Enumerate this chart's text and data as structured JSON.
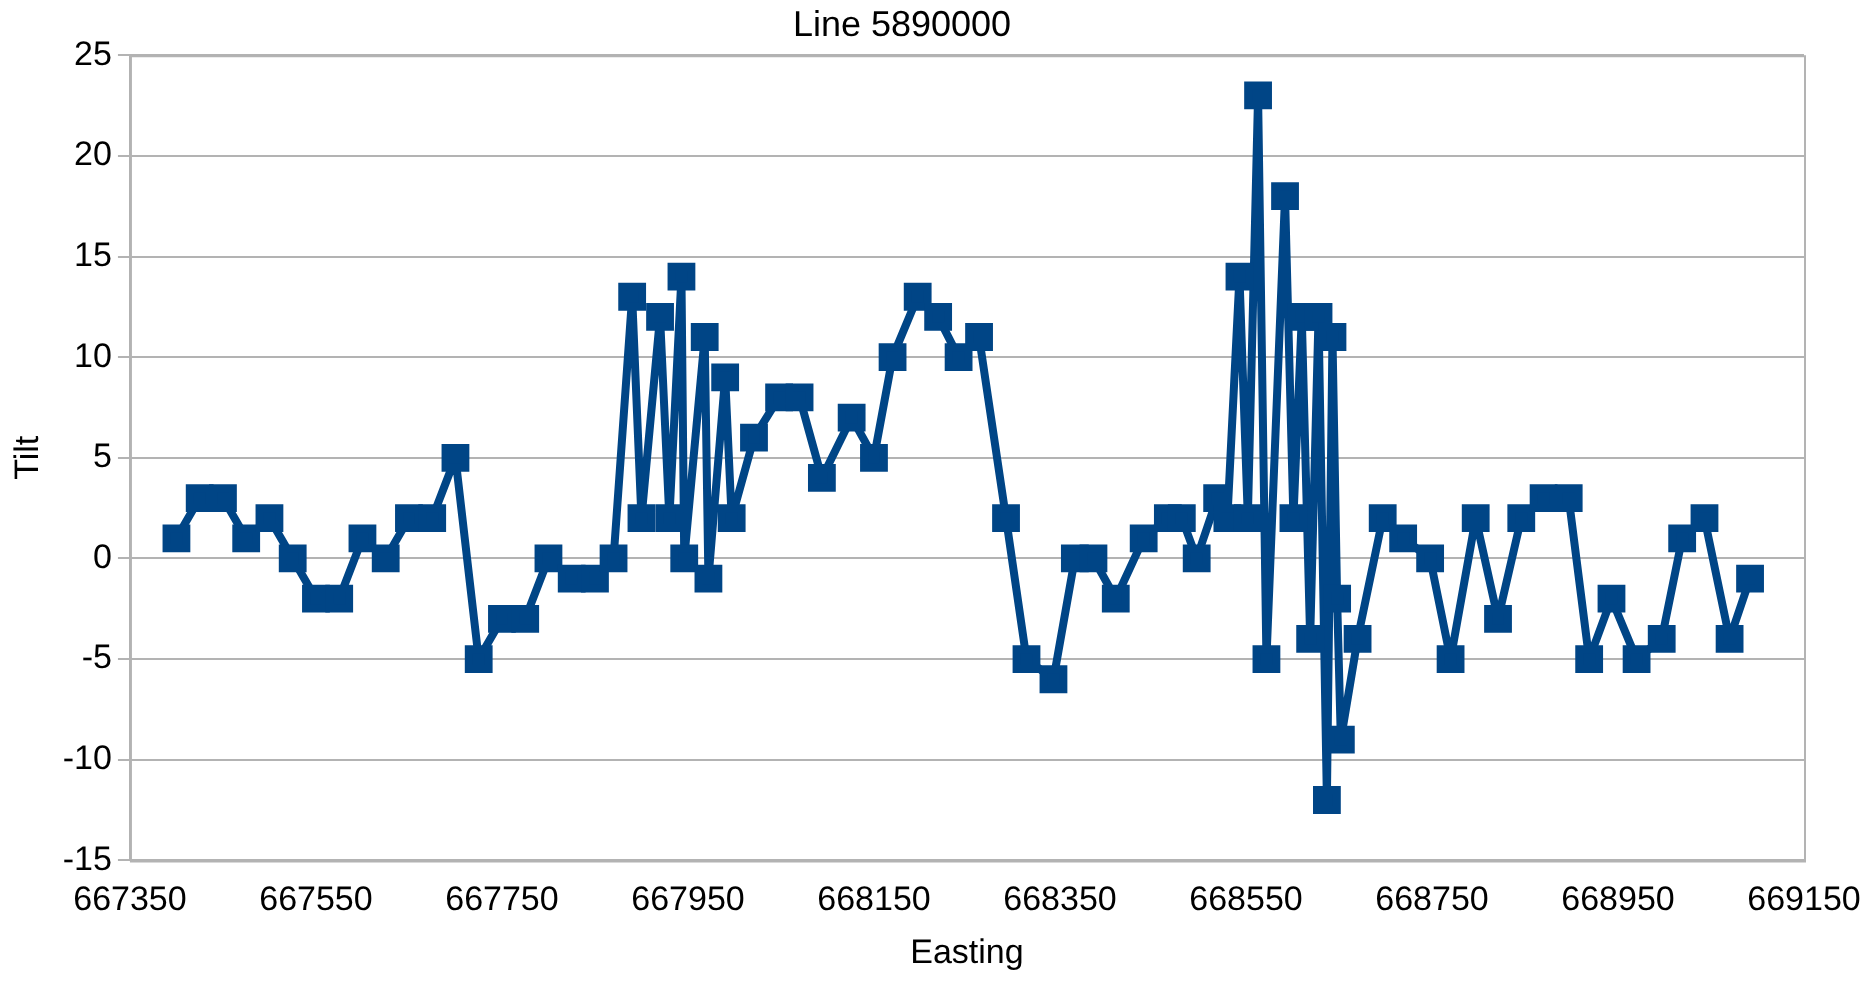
{
  "chart_data": {
    "type": "line",
    "title": "Line 5890000",
    "xlabel": "Easting",
    "ylabel": "Tilt",
    "xlim": [
      667350,
      669150
    ],
    "xticks": [
      667350,
      667550,
      667750,
      667950,
      668150,
      668350,
      668550,
      668750,
      668950,
      669150
    ],
    "ylim": [
      -15,
      25
    ],
    "yticks": [
      -15,
      -10,
      -5,
      0,
      5,
      10,
      15,
      20,
      25
    ],
    "grid": "y",
    "legend": false,
    "marker": "square",
    "line_style": "solid",
    "series": [
      {
        "color": "#004586",
        "x": [
          667400,
          667425,
          667450,
          667475,
          667500,
          667525,
          667550,
          667575,
          667600,
          667625,
          667650,
          667675,
          667700,
          667725,
          667750,
          667775,
          667800,
          667825,
          667850,
          667870,
          667890,
          667900,
          667920,
          667930,
          667943,
          667946,
          667968,
          667972,
          667990,
          667997,
          668021,
          668048,
          668070,
          668094,
          668126,
          668150,
          668170,
          668197,
          668219,
          668241,
          668263,
          668292,
          668314,
          668343,
          668366,
          668386,
          668410,
          668440,
          668466,
          668481,
          668497,
          668519,
          668530,
          668543,
          668552,
          668563,
          668572,
          668592,
          668601,
          668610,
          668619,
          668628,
          668637,
          668643,
          668648,
          668652,
          668670,
          668697,
          668719,
          668748,
          668770,
          668797,
          668821,
          668846,
          668870,
          668897,
          668919,
          668943,
          668970,
          668997,
          669019,
          669043,
          669070,
          669092
        ],
        "values": [
          1,
          3,
          3,
          1,
          2,
          0,
          -2,
          -2,
          1,
          0,
          2,
          2,
          5,
          -5,
          -3,
          -3,
          0,
          -1,
          -1,
          0,
          13,
          2,
          12,
          2,
          14,
          0,
          11,
          -1,
          9,
          2,
          6,
          8,
          8,
          4,
          7,
          5,
          10,
          13,
          12,
          10,
          11,
          2,
          -5,
          -6,
          0,
          0,
          -2,
          1,
          2,
          2,
          0,
          3,
          2,
          14,
          2,
          23,
          -5,
          18,
          2,
          12,
          -4,
          12,
          -12,
          11,
          -2,
          -9,
          -4,
          2,
          1,
          0,
          -5,
          2,
          -3,
          2,
          3,
          3,
          -5,
          -2,
          -5,
          -4,
          1,
          2,
          -4,
          -1
        ]
      }
    ]
  }
}
